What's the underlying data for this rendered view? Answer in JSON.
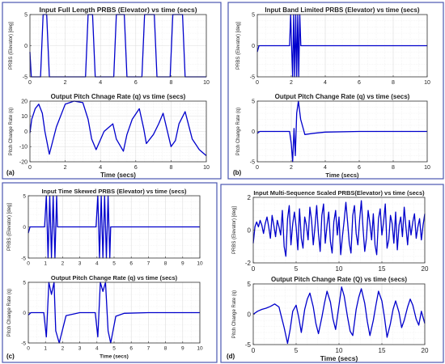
{
  "figure": {
    "border_color": "#4a56b0",
    "line_color": "#0000cc",
    "grid_color": "#dcdcdc"
  },
  "chart_data": [
    {
      "panel": "(a)",
      "plots": [
        {
          "type": "line",
          "title": "Input Full Length PRBS (Elevator) vs time (secs)",
          "ylabel": "PRBS (Elevator) [deg]",
          "xlabel": "",
          "xlim": [
            0,
            10
          ],
          "ylim": [
            -5,
            5
          ],
          "xticks": [
            0,
            2,
            4,
            6,
            8,
            10
          ],
          "yticks": [
            -5,
            0,
            5
          ],
          "series": [
            {
              "x": [
                0,
                0.02,
                0.08,
                0.6,
                0.75,
                0.95,
                1.1,
                3.15,
                3.3,
                3.55,
                3.7,
                4.75,
                4.9,
                5.35,
                5.5,
                6.35,
                6.5,
                7.05,
                7.2,
                7.95,
                8.1,
                8.65,
                8.8,
                10
              ],
              "y": [
                -1,
                -2,
                -5,
                -5,
                5,
                5,
                -5,
                -5,
                5,
                5,
                -5,
                -5,
                5,
                5,
                -5,
                -5,
                5,
                5,
                -5,
                -5,
                5,
                5,
                -5,
                -5
              ]
            }
          ]
        },
        {
          "type": "line",
          "title": "Output Pitch Chnage Rate (q) vs time (secs)",
          "ylabel": "Pitch Change Rate (q)",
          "xlabel": "Time (secs)",
          "xlim": [
            0,
            10
          ],
          "ylim": [
            -20,
            20
          ],
          "xticks": [
            0,
            2,
            4,
            6,
            8,
            10
          ],
          "yticks": [
            -20,
            -10,
            0,
            10,
            20
          ],
          "series": [
            {
              "x": [
                0,
                0.1,
                0.3,
                0.5,
                0.7,
                0.85,
                1.1,
                1.5,
                2,
                2.5,
                3,
                3.3,
                3.5,
                3.75,
                4.2,
                4.7,
                4.9,
                5.3,
                5.5,
                5.8,
                6.2,
                6.45,
                6.6,
                7,
                7.3,
                7.55,
                8,
                8.25,
                8.45,
                8.8,
                9.2,
                9.6,
                10
              ],
              "y": [
                -1,
                8,
                15,
                18,
                12,
                0,
                -15,
                3,
                18,
                20,
                19,
                8,
                -5,
                -12,
                0,
                5,
                -5,
                -13,
                -2,
                8,
                15,
                2,
                -8,
                -2,
                5,
                12,
                -10,
                -6,
                5,
                13,
                -5,
                -12,
                -16
              ]
            }
          ]
        }
      ]
    },
    {
      "panel": "(b)",
      "plots": [
        {
          "type": "line",
          "title": "Input Band Limited PRBS (Elevator) vs time (secs)",
          "ylabel": "PRBS (Elevator) [deg]",
          "xlabel": "",
          "xlim": [
            0,
            10
          ],
          "ylim": [
            -5,
            5
          ],
          "xticks": [
            0,
            2,
            4,
            6,
            8,
            10
          ],
          "yticks": [
            -5,
            0,
            5
          ],
          "series": [
            {
              "x": [
                0,
                0.1,
                1.9,
                1.96,
                2.02,
                2.08,
                2.14,
                2.2,
                2.26,
                2.32,
                2.38,
                2.44,
                2.5,
                2.56,
                10
              ],
              "y": [
                -1,
                0,
                0,
                5,
                0,
                -5,
                5,
                -5,
                5,
                -5,
                5,
                -5,
                5,
                0,
                0
              ]
            }
          ]
        },
        {
          "type": "line",
          "title": "Output Pitch Change Rate (q) vs time (secs)",
          "ylabel": "Pitch Change Rate (q)",
          "xlabel": "Time (secs)",
          "xlim": [
            0,
            10
          ],
          "ylim": [
            -5,
            5
          ],
          "xticks": [
            0,
            2,
            4,
            6,
            8,
            10
          ],
          "yticks": [
            -5,
            0,
            5
          ],
          "series": [
            {
              "x": [
                0,
                0.15,
                1.9,
                2,
                2.08,
                2.16,
                2.24,
                2.32,
                2.42,
                2.55,
                2.8,
                3.3,
                4,
                6,
                10
              ],
              "y": [
                -0.3,
                0,
                0,
                -2,
                -5,
                0.5,
                -4,
                3,
                6,
                2,
                -0.5,
                -0.3,
                -0.1,
                0,
                0
              ]
            }
          ]
        }
      ]
    },
    {
      "panel": "(c)",
      "plots": [
        {
          "type": "line",
          "title": "Input Time Skewed PRBS (Elevator) vs time (secs)",
          "ylabel": "PRBS (Elevator) [deg]",
          "xlabel": "",
          "xlim": [
            0,
            10
          ],
          "ylim": [
            -5,
            5
          ],
          "xticks": [
            0,
            1,
            2,
            3,
            4,
            5,
            6,
            7,
            8,
            9,
            10
          ],
          "yticks": [
            -5,
            0,
            5
          ],
          "series": [
            {
              "x": [
                0,
                0.1,
                0.95,
                1.05,
                1.15,
                1.25,
                1.35,
                1.45,
                1.55,
                1.65,
                1.7,
                3.95,
                4.05,
                4.15,
                4.25,
                4.35,
                4.45,
                4.55,
                4.65,
                4.75,
                4.8,
                10
              ],
              "y": [
                -1,
                0,
                0,
                5,
                -5,
                5,
                -5,
                5,
                -5,
                5,
                0,
                0,
                5,
                -5,
                5,
                -5,
                5,
                -5,
                5,
                -5,
                0,
                0
              ]
            }
          ]
        },
        {
          "type": "line",
          "title": "Output Pitch Change Rate (q) vs time (secs)",
          "ylabel": "Pitch Change Rate (q)",
          "xlabel": "Time (secs)",
          "xlim": [
            0,
            10
          ],
          "ylim": [
            -5,
            5
          ],
          "xticks": [
            0,
            1,
            2,
            3,
            4,
            5,
            6,
            7,
            8,
            9,
            10
          ],
          "yticks": [
            -5,
            0,
            5
          ],
          "series": [
            {
              "x": [
                0,
                0.15,
                0.9,
                1.05,
                1.2,
                1.35,
                1.5,
                1.6,
                1.8,
                2.2,
                3,
                3.9,
                4.05,
                4.2,
                4.35,
                4.5,
                4.65,
                4.8,
                5.1,
                5.6,
                7,
                10
              ],
              "y": [
                -0.4,
                0,
                0,
                -4,
                5,
                3,
                5,
                -3,
                -5,
                -0.5,
                0,
                0,
                -4,
                5,
                3.5,
                5,
                -3,
                -5,
                -0.6,
                -0.1,
                0,
                0
              ]
            }
          ]
        }
      ]
    },
    {
      "panel": "(d)",
      "plots": [
        {
          "type": "line",
          "title": "Input Multi-Sequence Scaled PRBS(Elevator) vs time (secs)",
          "ylabel": "PRBS (Elevator) [deg]",
          "xlabel": "",
          "xlim": [
            0,
            20
          ],
          "ylim": [
            -2,
            2
          ],
          "xticks": [
            0,
            5,
            10,
            15,
            20
          ],
          "yticks": [
            -2,
            0,
            2
          ],
          "series": [
            {
              "x": [
                0,
                0.2,
                0.4,
                0.6,
                0.8,
                1,
                1.2,
                1.4,
                1.6,
                1.8,
                2,
                2.2,
                2.4,
                2.6,
                2.8,
                3,
                3.2,
                3.4,
                3.6,
                3.8,
                4,
                4.2,
                4.4,
                4.6,
                4.8,
                5,
                5.2,
                5.4,
                5.6,
                5.8,
                6,
                6.2,
                6.4,
                6.6,
                6.8,
                7,
                7.2,
                7.4,
                7.6,
                7.8,
                8,
                8.2,
                8.4,
                8.6,
                8.8,
                9,
                9.2,
                9.4,
                9.6,
                9.8,
                10,
                10.2,
                10.4,
                10.6,
                10.8,
                11,
                11.2,
                11.4,
                11.6,
                11.8,
                12,
                12.2,
                12.4,
                12.6,
                12.8,
                13,
                13.2,
                13.4,
                13.6,
                13.8,
                14,
                14.2,
                14.4,
                14.6,
                14.8,
                15,
                15.2,
                15.4,
                15.6,
                15.8,
                16,
                16.2,
                16.4,
                16.6,
                16.8,
                17,
                17.2,
                17.4,
                17.6,
                17.8,
                18,
                18.2,
                18.4,
                18.6,
                18.8,
                19,
                19.2,
                19.4,
                19.6,
                19.8,
                20
              ],
              "y": [
                -0.8,
                0.2,
                0.5,
                0.2,
                0.6,
                0.3,
                -0.2,
                0.4,
                0.8,
                0.2,
                -0.5,
                0.9,
                0.3,
                -0.4,
                0.6,
                0.2,
                -0.3,
                1.2,
                -1,
                -1.6,
                0.7,
                1.5,
                -0.9,
                0.4,
                1.1,
                0.2,
                -1.2,
                1.3,
                -0.5,
                -1.1,
                0.8,
                0.3,
                -0.6,
                1.4,
                0.6,
                -0.9,
                0.2,
                1.5,
                -0.2,
                -1.3,
                0.9,
                1.6,
                -0.8,
                0.3,
                1.1,
                -0.7,
                -1.4,
                0.5,
                1.2,
                -0.3,
                0.8,
                -1.5,
                -0.4,
                0.6,
                1.7,
                0.5,
                -0.8,
                -1.4,
                0.9,
                1.5,
                -0.2,
                -0.9,
                0.6,
                1.8,
                0.1,
                -1.3,
                -0.5,
                1.2,
                0.4,
                -0.6,
                1,
                -0.9,
                -1.5,
                0.7,
                1.3,
                -0.3,
                0.5,
                1.6,
                -1.1,
                -0.6,
                0.9,
                0.4,
                -0.8,
                1.1,
                -1.2,
                0.3,
                0.8,
                -0.4,
                1.4,
                0.2,
                -0.9,
                0.6,
                -0.3,
                0.5,
                1,
                -0.5,
                0.2,
                0.7,
                -0.6,
                0.3,
                1
              ]
            }
          ]
        },
        {
          "type": "line",
          "title": "Output Pitch Change Rate (Q) vs time (secs)",
          "ylabel": "Pitch Change Rate (q)",
          "xlabel": "Time (secs)",
          "xlim": [
            0,
            20
          ],
          "ylim": [
            -5,
            5
          ],
          "xticks": [
            0,
            5,
            10,
            15,
            20
          ],
          "yticks": [
            -5,
            0,
            5
          ],
          "series": [
            {
              "x": [
                0,
                0.5,
                1,
                1.5,
                2,
                2.5,
                3,
                3.3,
                3.6,
                4,
                4.3,
                4.6,
                5,
                5.3,
                5.6,
                6,
                6.3,
                6.6,
                7,
                7.3,
                7.6,
                8,
                8.3,
                8.6,
                9,
                9.3,
                9.6,
                10,
                10.3,
                10.6,
                11,
                11.3,
                11.6,
                12,
                12.3,
                12.6,
                13,
                13.3,
                13.6,
                14,
                14.3,
                14.6,
                15,
                15.3,
                15.6,
                16,
                16.3,
                16.6,
                17,
                17.3,
                17.6,
                18,
                18.3,
                18.6,
                19,
                19.3,
                19.6,
                20
              ],
              "y": [
                0,
                0.5,
                0.8,
                1,
                1.3,
                1.7,
                1.2,
                -0.5,
                -2.2,
                -4.8,
                -2.5,
                0.5,
                1.5,
                -0.5,
                -3,
                0.8,
                2.5,
                3.5,
                1.2,
                -1.5,
                -3.2,
                -0.5,
                1.8,
                3.8,
                2,
                -0.8,
                -2.5,
                1.5,
                4.5,
                3,
                -0.5,
                -2.8,
                -3.5,
                0.8,
                2.8,
                4.2,
                1.8,
                -1.2,
                -3.5,
                -1,
                1.5,
                3.8,
                2.2,
                -0.5,
                -3.8,
                -1.5,
                0.8,
                2.2,
                0.3,
                -2.2,
                -1,
                1.2,
                2.5,
                1.5,
                -0.8,
                -1.8,
                0.5,
                -1.5
              ]
            }
          ]
        }
      ]
    }
  ]
}
